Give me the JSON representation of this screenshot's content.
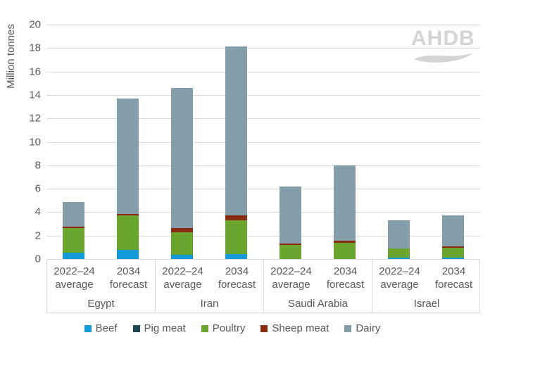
{
  "watermark": {
    "text": "AHDB"
  },
  "chart_data": {
    "type": "bar",
    "stacked": true,
    "title": "",
    "xlabel": "",
    "ylabel": "Million tonnes",
    "ylim": [
      0,
      20
    ],
    "ytick_step": 2,
    "grid": true,
    "legend_position": "bottom",
    "groups": [
      "Egypt",
      "Iran",
      "Saudi Arabia",
      "Israel"
    ],
    "bar_labels": [
      [
        "2022–24",
        "average"
      ],
      [
        "2034",
        "forecast"
      ]
    ],
    "series": [
      {
        "name": "Beef",
        "color": "#129bd8",
        "values": [
          0.55,
          0.78,
          0.35,
          0.42,
          0.0,
          0.0,
          0.13,
          0.12
        ]
      },
      {
        "name": "Pig meat",
        "color": "#1c4956",
        "values": [
          0.0,
          0.0,
          0.0,
          0.0,
          0.0,
          0.0,
          0.0,
          0.0
        ]
      },
      {
        "name": "Poultry",
        "color": "#6aa52e",
        "values": [
          2.1,
          2.95,
          1.95,
          2.9,
          1.2,
          1.4,
          0.78,
          0.85
        ]
      },
      {
        "name": "Sheep meat",
        "color": "#8b2c12",
        "values": [
          0.1,
          0.1,
          0.35,
          0.4,
          0.15,
          0.17,
          0.0,
          0.1
        ]
      },
      {
        "name": "Dairy",
        "color": "#849dab",
        "values": [
          2.1,
          9.87,
          11.95,
          14.43,
          4.85,
          6.43,
          2.39,
          2.65
        ]
      }
    ],
    "bar_totals": [
      4.85,
      13.7,
      14.6,
      18.15,
      6.2,
      8.0,
      3.3,
      3.72
    ],
    "colors": {
      "grid": "#d9d9d9",
      "text": "#595959",
      "watermark": "#d4d4d4"
    }
  }
}
